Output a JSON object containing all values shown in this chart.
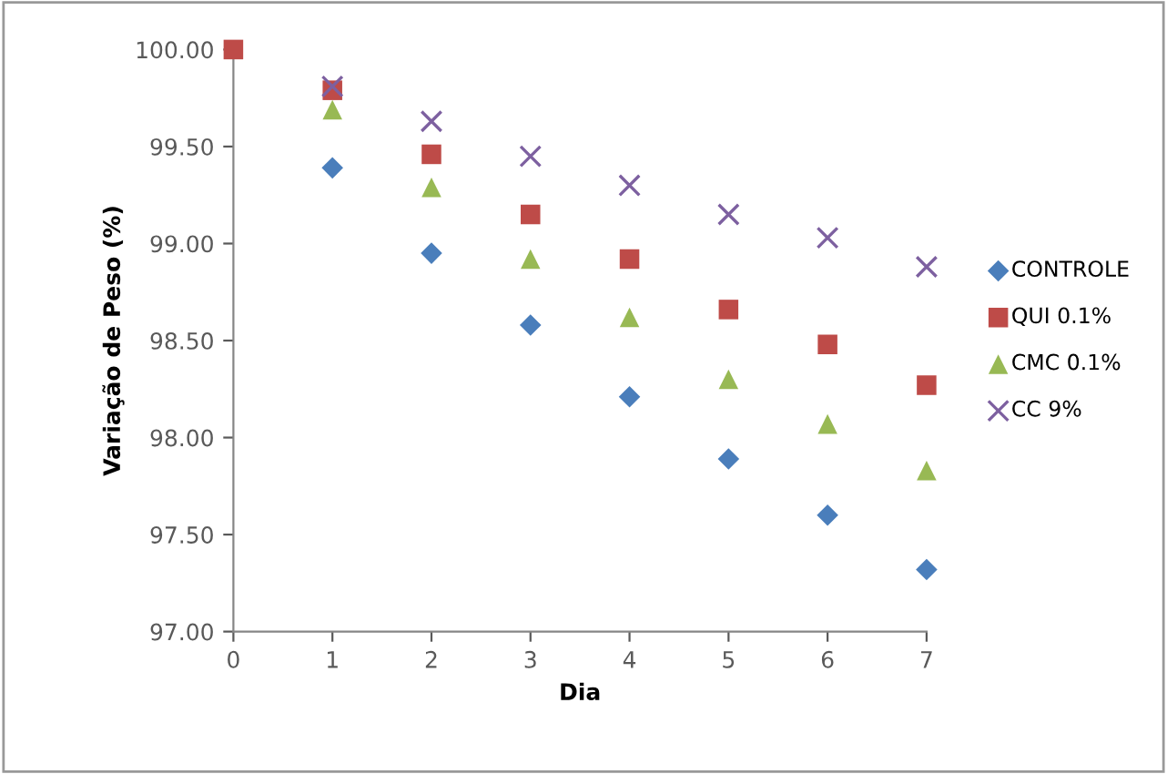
{
  "chart_data": {
    "type": "scatter",
    "xlabel": "Dia",
    "ylabel": "Variação de Peso (%)",
    "x": [
      0,
      1,
      2,
      3,
      4,
      5,
      6,
      7
    ],
    "xlim": [
      0,
      7
    ],
    "xticks": [
      0,
      1,
      2,
      3,
      4,
      5,
      6,
      7
    ],
    "ylim": [
      97,
      100
    ],
    "yticks": [
      {
        "value": 97,
        "label": "97.00"
      },
      {
        "value": 97.5,
        "label": "97.50"
      },
      {
        "value": 98,
        "label": "98.00"
      },
      {
        "value": 98.5,
        "label": "98.50"
      },
      {
        "value": 99,
        "label": "99.00"
      },
      {
        "value": 99.5,
        "label": "99.50"
      },
      {
        "value": 100,
        "label": "100.00"
      }
    ],
    "grid": false,
    "legend": "right",
    "series": [
      {
        "name": "CONTROLE",
        "color": "#4a7ebb",
        "marker": "diamond",
        "values": [
          null,
          99.39,
          98.95,
          98.58,
          98.21,
          97.89,
          97.6,
          97.32
        ]
      },
      {
        "name": "QUI 0.1%",
        "color": "#be4b48",
        "marker": "square",
        "values": [
          100,
          99.79,
          99.46,
          99.15,
          98.92,
          98.66,
          98.48,
          98.27
        ]
      },
      {
        "name": "CMC 0.1%",
        "color": "#98b954",
        "marker": "triangle",
        "values": [
          null,
          99.69,
          99.29,
          98.92,
          98.62,
          98.3,
          98.07,
          97.83
        ]
      },
      {
        "name": "CC 9%",
        "color": "#7d60a0",
        "marker": "cross",
        "values": [
          null,
          99.81,
          99.63,
          99.45,
          99.3,
          99.15,
          99.03,
          98.88
        ]
      }
    ]
  }
}
